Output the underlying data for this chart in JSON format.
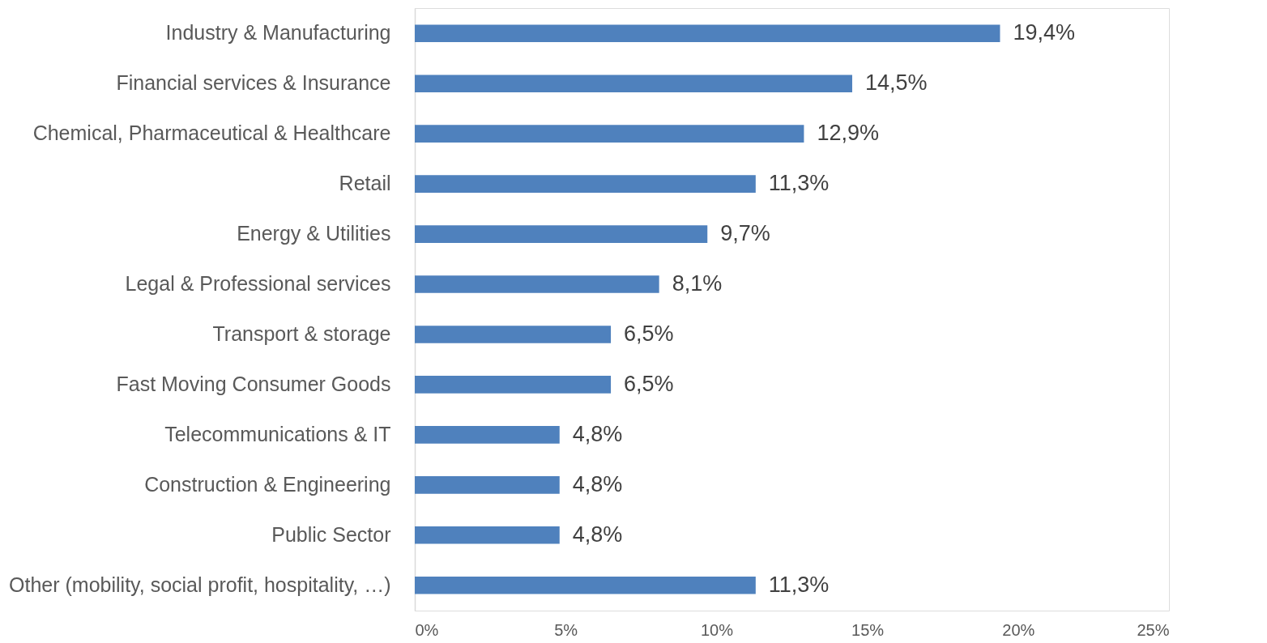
{
  "chart_data": {
    "type": "bar",
    "orientation": "horizontal",
    "categories": [
      "Industry & Manufacturing",
      "Financial services & Insurance",
      "Chemical, Pharmaceutical & Healthcare",
      "Retail",
      "Energy & Utilities",
      "Legal & Professional services",
      "Transport & storage",
      "Fast Moving Consumer Goods",
      "Telecommunications & IT",
      "Construction & Engineering",
      "Public Sector",
      "Other (mobility, social profit, hospitality, …)"
    ],
    "values": [
      19.4,
      14.5,
      12.9,
      11.3,
      9.7,
      8.1,
      6.5,
      6.5,
      4.8,
      4.8,
      4.8,
      11.3
    ],
    "value_labels": [
      "19,4%",
      "14,5%",
      "12,9%",
      "11,3%",
      "9,7%",
      "8,1%",
      "6,5%",
      "6,5%",
      "4,8%",
      "4,8%",
      "4,8%",
      "11,3%"
    ],
    "color": "#4f81bd",
    "xlim": [
      0,
      25
    ],
    "xticks": [
      {
        "value": 0,
        "label": "0%"
      },
      {
        "value": 5,
        "label": "5%"
      },
      {
        "value": 10,
        "label": "10%"
      },
      {
        "value": 15,
        "label": "15%"
      },
      {
        "value": 20,
        "label": "20%"
      },
      {
        "value": 25,
        "label": "25%"
      }
    ],
    "grid": false
  }
}
